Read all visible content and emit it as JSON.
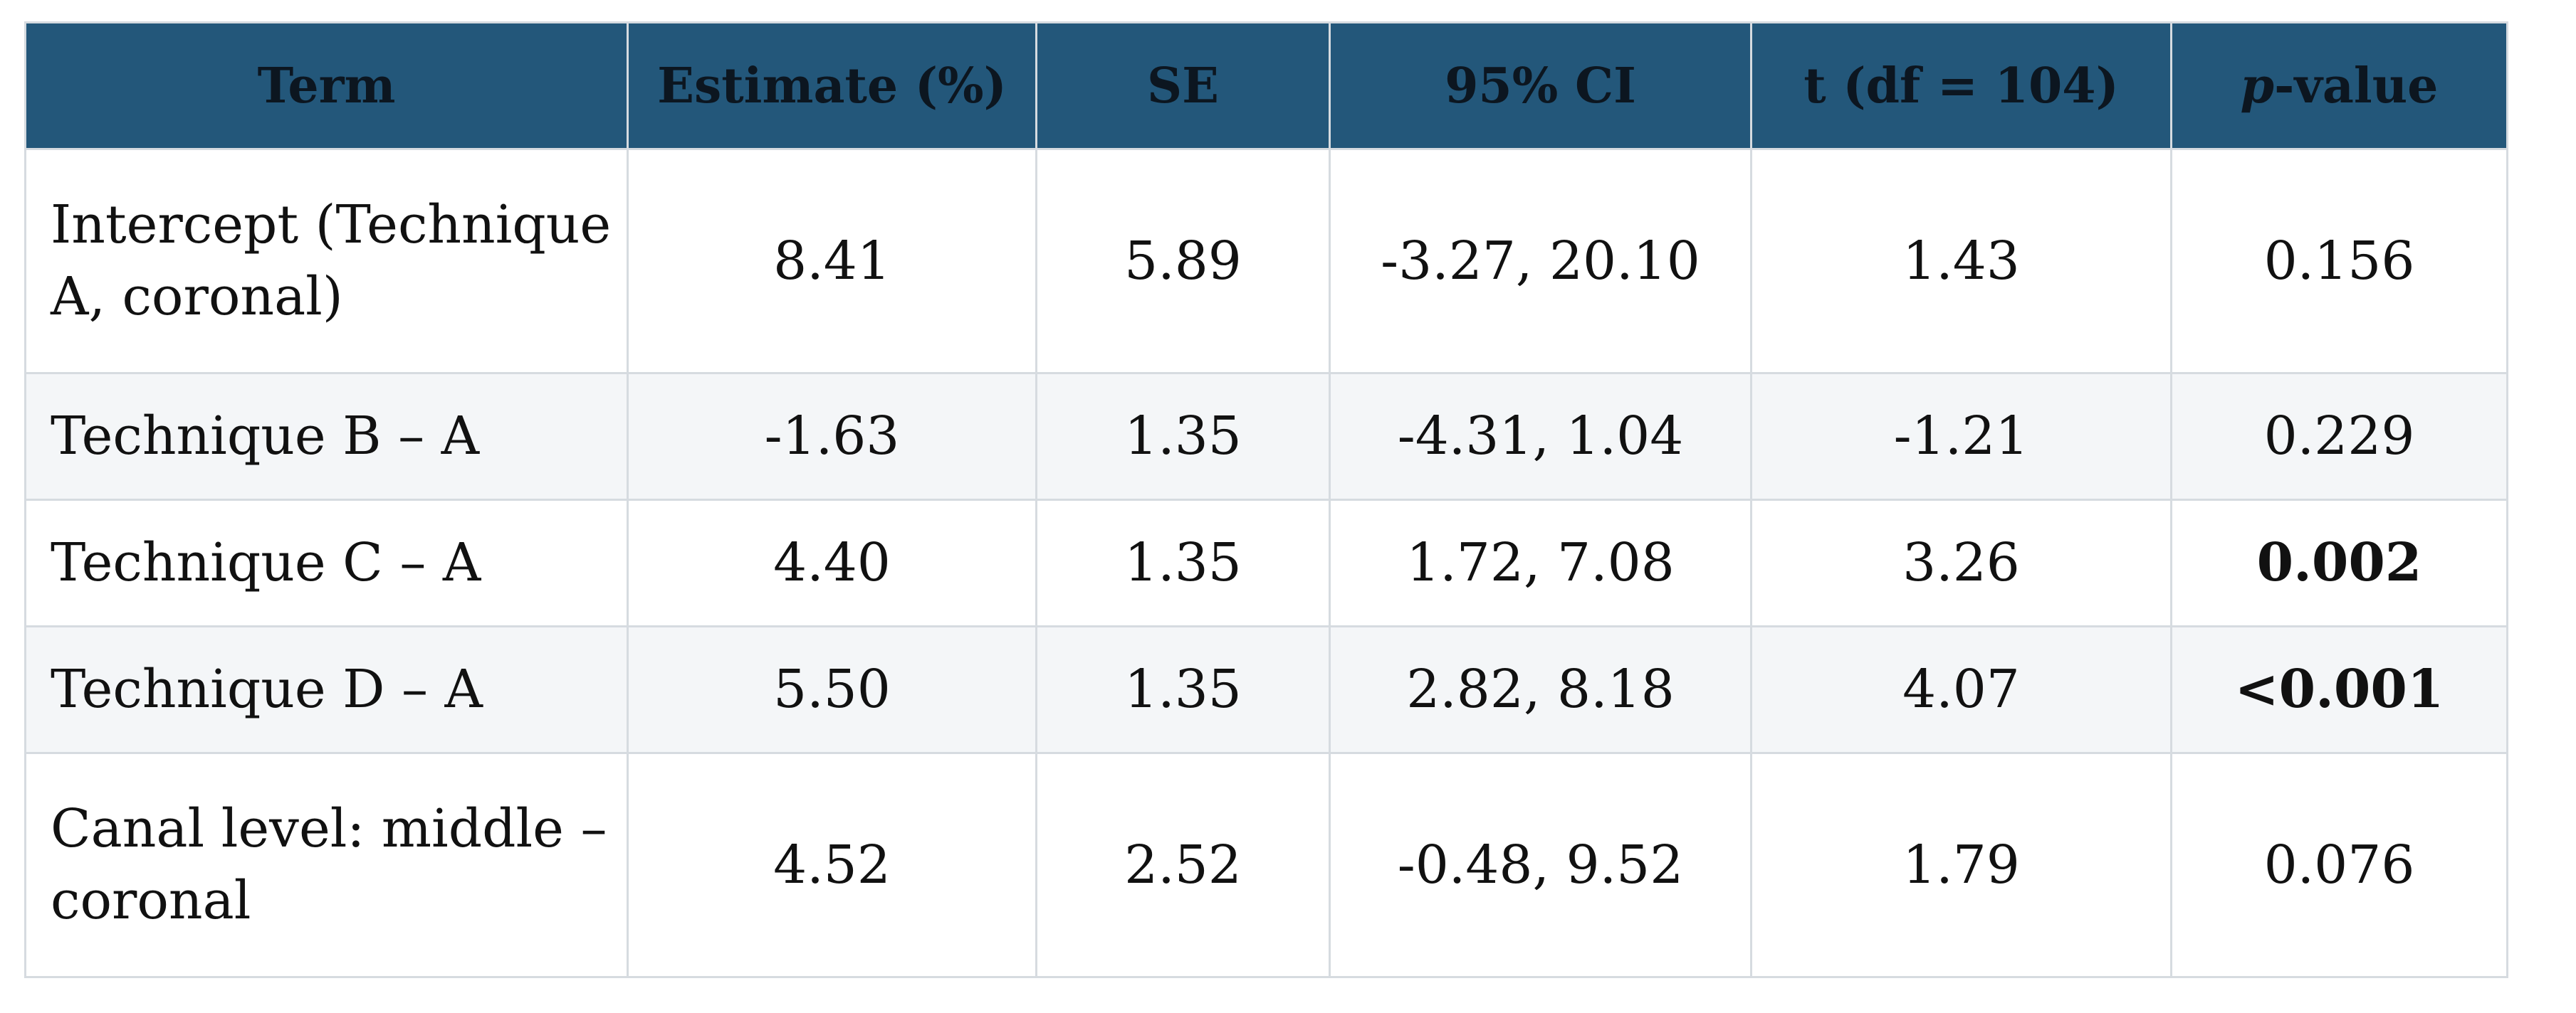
{
  "table": {
    "headers": {
      "term": "Term",
      "estimate": "Estimate (%)",
      "se": "SE",
      "ci": "95% CI",
      "t": "t (df = 104)",
      "p_italic": "p",
      "p_rest": "-value"
    },
    "rows": [
      {
        "term": "Intercept  (Technique A, coronal)",
        "estimate": "8.41",
        "se": "5.89",
        "ci": "-3.27, 20.10",
        "t": "1.43",
        "p": "0.156"
      },
      {
        "term": "Technique B – A",
        "estimate": "-1.63",
        "se": "1.35",
        "ci": "-4.31, 1.04",
        "t": "-1.21",
        "p": "0.229"
      },
      {
        "term": "Technique C – A",
        "estimate": "4.40",
        "se": "1.35",
        "ci": "1.72, 7.08",
        "t": "3.26",
        "p": "0.002"
      },
      {
        "term": "Technique D – A",
        "estimate": "5.50",
        "se": "1.35",
        "ci": "2.82, 8.18",
        "t": "4.07",
        "p": "<0.001"
      },
      {
        "term": "Canal level: middle – coronal",
        "estimate": "4.52",
        "se": "2.52",
        "ci": "-0.48, 9.52",
        "t": "1.79",
        "p": "0.076"
      }
    ]
  },
  "colors": {
    "header_bg": "#23577a",
    "border": "#d6dbe0",
    "shaded_row": "#f4f6f8"
  }
}
